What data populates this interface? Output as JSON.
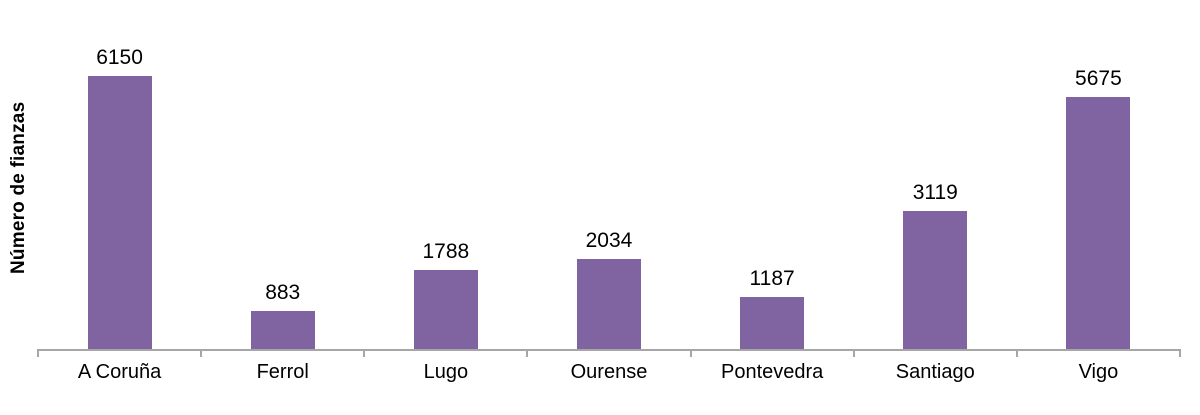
{
  "figure": {
    "background": "#ffffff"
  },
  "chart_data": {
    "type": "bar",
    "categories": [
      "A Coruña",
      "Ferrol",
      "Lugo",
      "Ourense",
      "Pontevedra",
      "Santiago",
      "Vigo"
    ],
    "values": [
      6150,
      883,
      1788,
      2034,
      1187,
      3119,
      5675
    ],
    "title": "",
    "xlabel": "",
    "ylabel": "Número de fianzas",
    "ylim": [
      0,
      7860
    ],
    "grid": false,
    "legend": false,
    "data_labels": true,
    "bar_color": "#8064A2",
    "axis_color": "#A6A6A6",
    "label_color": "#000000"
  }
}
